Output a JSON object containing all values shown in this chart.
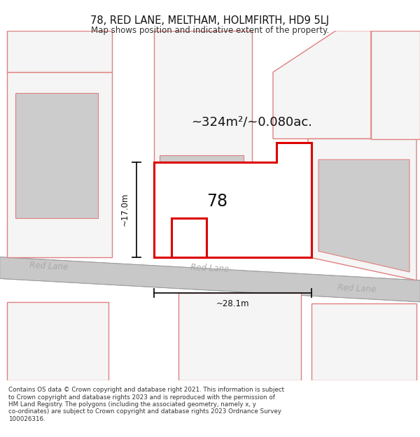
{
  "title_line1": "78, RED LANE, MELTHAM, HOLMFIRTH, HD9 5LJ",
  "title_line2": "Map shows position and indicative extent of the property.",
  "footer_text": "Contains OS data © Crown copyright and database right 2021. This information is subject\nto Crown copyright and database rights 2023 and is reproduced with the permission of\nHM Land Registry. The polygons (including the associated geometry, namely x, y\nco-ordinates) are subject to Crown copyright and database rights 2023 Ordnance Survey\n100026316.",
  "area_label": "~324m²/~0.080ac.",
  "width_label": "~28.1m",
  "height_label": "~17.0m",
  "street_label_center": "Red Lane",
  "street_label_left": "Red Lane",
  "street_label_right": "Red Lane",
  "number_label": "78",
  "bg_color": "#ffffff",
  "map_bg": "#f0f0f0",
  "road_color": "#d0d0d0",
  "plot_red": "#e8a0a0",
  "plot_fill": "#f5f5f5",
  "building_fill": "#d0d0d0",
  "main_red": "#dd0000",
  "dim_color": "#111111",
  "road_label_color": "#b0b0b0",
  "text_color": "#111111"
}
